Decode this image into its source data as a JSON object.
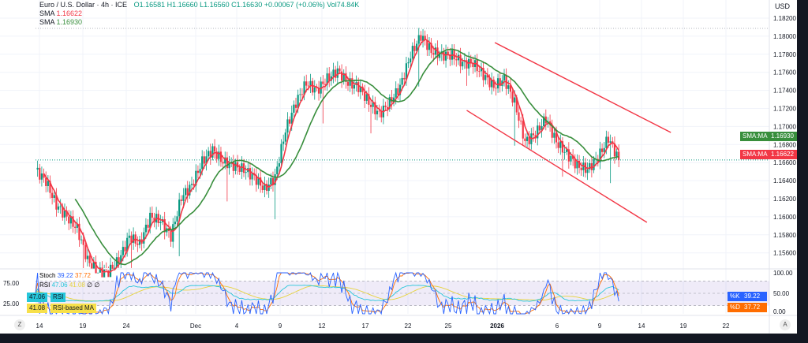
{
  "header": {
    "symbol": "Euro / U.S. Dollar · 4h · ICE",
    "ohlc": "O1.16581 H1.16660 L1.16560 C1.16630 +0.00067 (+0.06%) Vol74.84K",
    "sma1_label": "SMA",
    "sma1_value": "1.16622",
    "sma2_label": "SMA",
    "sma2_value": "1.16930"
  },
  "currency": "USD",
  "price_tags": [
    {
      "label": "SMA:MA",
      "value": "1.16930",
      "color": "#388e3c"
    },
    {
      "label": "SMA:MA",
      "value": "1.16622",
      "color": "#f23645"
    }
  ],
  "osc": {
    "stoch_label": "Stoch",
    "k": "39.22",
    "d": "37.72",
    "rsi_label": "RSI",
    "rsi": "47.06",
    "rsi_ma": "41.08",
    "nan1": "∅",
    "nan2": "∅",
    "rsi_tag": "RSI",
    "rsi_ma_tag": "RSI-based MA",
    "k_tag": "%K",
    "d_tag": "%D",
    "left_ticks": [
      "75.00",
      "25.00"
    ],
    "right_ticks": [
      "100.00",
      "50.00",
      "0.00"
    ]
  },
  "colors": {
    "up": "#089981",
    "down": "#f23645",
    "sma_fast": "#f23645",
    "sma_slow": "#388e3c",
    "channel": "#f23645",
    "stoch_k": "#2962ff",
    "stoch_d": "#ff6d00",
    "rsi": "#26c6da",
    "rsi_ma": "#e6d33c"
  },
  "axis_button": "A",
  "chart_data": {
    "type": "candlestick",
    "price_path": [
      1.16524,
      1.16393,
      1.16131,
      1.16,
      1.15869,
      1.1552,
      1.15389,
      1.15389,
      1.1552,
      1.15782,
      1.15695,
      1.16,
      1.15956,
      1.15782,
      1.16218,
      1.16349,
      1.16611,
      1.16742,
      1.16611,
      1.16567,
      1.16524,
      1.16437,
      1.16306,
      1.16437,
      1.1696,
      1.17266,
      1.17484,
      1.17397,
      1.17528,
      1.17615,
      1.17484,
      1.1744,
      1.17266,
      1.17135,
      1.17266,
      1.1744,
      1.1779,
      1.18008,
      1.17833,
      1.1779,
      1.1779,
      1.17702,
      1.17702,
      1.17571,
      1.1744,
      1.17528,
      1.17266,
      1.1683,
      1.16917,
      1.17091,
      1.1683,
      1.16698,
      1.16567,
      1.16524,
      1.16655,
      1.16873,
      1.1663
    ],
    "yticks": [
      "1.18200",
      "1.18000",
      "1.17800",
      "1.17600",
      "1.17400",
      "1.17200",
      "1.17000",
      "1.16800",
      "1.16600",
      "1.16400",
      "1.16200",
      "1.16000",
      "1.15800",
      "1.15600"
    ],
    "ylim": [
      1.1545,
      1.1835
    ],
    "xticks": [
      "14",
      "19",
      "24",
      "Dec",
      "4",
      "9",
      "12",
      "17",
      "22",
      "25",
      "2026",
      "6",
      "9",
      "14",
      "19",
      "22"
    ],
    "channel": [
      {
        "from": [
          44.1,
          1.17929
        ],
        "to": [
          61,
          1.16934
        ]
      },
      {
        "from": [
          41.4,
          1.17179
        ],
        "to": [
          58.7,
          1.15939
        ]
      }
    ],
    "last_price": 1.1663
  }
}
